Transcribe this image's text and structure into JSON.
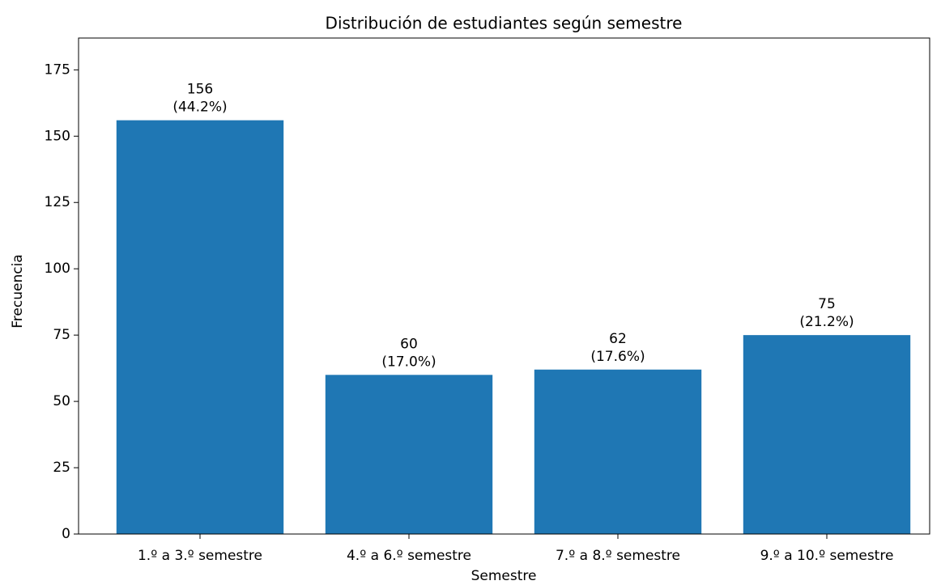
{
  "chart_data": {
    "type": "bar",
    "title": "Distribución de estudiantes según semestre",
    "xlabel": "Semestre",
    "ylabel": "Frecuencia",
    "categories": [
      "1.º a 3.º semestre",
      "4.º a 6.º semestre",
      "7.º a 8.º semestre",
      "9.º a 10.º semestre"
    ],
    "values": [
      156,
      60,
      62,
      75
    ],
    "value_labels": [
      [
        "156",
        "(44.2%)"
      ],
      [
        "60",
        "(17.0%)"
      ],
      [
        "62",
        "(17.6%)"
      ],
      [
        "75",
        "(21.2%)"
      ]
    ],
    "color": "#1f77b4",
    "ylim": [
      0,
      187
    ],
    "yticks": [
      0,
      25,
      50,
      75,
      100,
      125,
      150,
      175
    ],
    "grid": false
  }
}
